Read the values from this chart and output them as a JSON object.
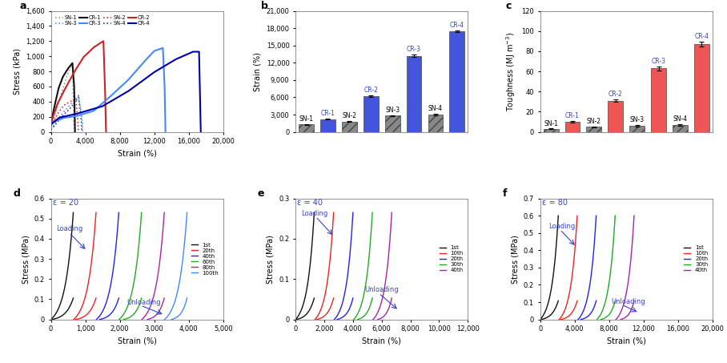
{
  "panel_a": {
    "title": "a",
    "xlabel": "Strain (%)",
    "ylabel": "Stress (kPa)",
    "xlim": [
      0,
      20000
    ],
    "ylim": [
      0,
      1600
    ],
    "xticks": [
      0,
      4000,
      8000,
      12000,
      16000,
      20000
    ],
    "xticklabels": [
      "0",
      "4,000",
      "8,000",
      "12,000",
      "16,000",
      "20,000"
    ],
    "yticks": [
      0,
      200,
      400,
      600,
      800,
      1000,
      1200,
      1400,
      1600
    ],
    "yticklabels": [
      "0",
      "200",
      "400",
      "600",
      "800",
      "1,000",
      "1,200",
      "1,400",
      "1,600"
    ]
  },
  "panel_b": {
    "title": "b",
    "ylabel": "Strain (%)",
    "ylim": [
      0,
      21000
    ],
    "yticks": [
      0,
      3000,
      6000,
      9000,
      12000,
      15000,
      18000,
      21000
    ],
    "yticklabels": [
      "0",
      "3,000",
      "6,000",
      "9,000",
      "12,000",
      "15,000",
      "18,000",
      "21,000"
    ],
    "groups": [
      "SN-1",
      "CR-1",
      "SN-2",
      "CR-2",
      "SN-3",
      "CR-3",
      "SN-4",
      "CR-4"
    ],
    "values": [
      1300,
      2200,
      1800,
      6200,
      2800,
      13200,
      3000,
      17500
    ],
    "errors": [
      50,
      80,
      60,
      120,
      80,
      200,
      90,
      150
    ],
    "colors": [
      "#888888",
      "#4455dd",
      "#888888",
      "#4455dd",
      "#888888",
      "#4455dd",
      "#888888",
      "#4455dd"
    ],
    "hatched": [
      true,
      false,
      true,
      false,
      true,
      false,
      true,
      false
    ]
  },
  "panel_c": {
    "title": "c",
    "ylabel": "Toughness (MJ m⁻³)",
    "ylim": [
      0,
      120
    ],
    "yticks": [
      0,
      20,
      40,
      60,
      80,
      100,
      120
    ],
    "yticklabels": [
      "0",
      "20",
      "40",
      "60",
      "80",
      "100",
      "120"
    ],
    "groups": [
      "SN-1",
      "CR-1",
      "SN-2",
      "CR-2",
      "SN-3",
      "CR-3",
      "SN-4",
      "CR-4"
    ],
    "values": [
      3,
      10,
      5,
      31,
      6,
      63,
      7,
      87
    ],
    "errors": [
      0.3,
      0.8,
      0.5,
      1.2,
      0.6,
      2.0,
      0.7,
      2.5
    ],
    "colors": [
      "#888888",
      "#ee5555",
      "#888888",
      "#ee5555",
      "#888888",
      "#ee5555",
      "#888888",
      "#ee5555"
    ],
    "hatched": [
      true,
      false,
      true,
      false,
      true,
      false,
      true,
      false
    ]
  },
  "panel_d": {
    "title": "d",
    "annotation": "ε = 20",
    "xlabel": "Strain (%)",
    "ylabel": "Stress (MPa)",
    "xlim": [
      0,
      5000
    ],
    "ylim": [
      0,
      0.6
    ],
    "xticks": [
      0,
      1000,
      2000,
      3000,
      4000,
      5000
    ],
    "xticklabels": [
      "0",
      "1,000",
      "2,000",
      "3,000",
      "4,000",
      "5,000"
    ],
    "yticks": [
      0.0,
      0.1,
      0.2,
      0.3,
      0.4,
      0.5,
      0.6
    ],
    "yticklabels": [
      "0",
      "0.1",
      "0.2",
      "0.3",
      "0.4",
      "0.5",
      "0.6"
    ],
    "cycles": [
      "1st",
      "20th",
      "40th",
      "60th",
      "80th",
      "100th"
    ],
    "colors": [
      "#111111",
      "#ee2222",
      "#2222ee",
      "#22aa22",
      "#aa22aa",
      "#4488ff"
    ]
  },
  "panel_e": {
    "title": "e",
    "annotation": "ε = 40",
    "xlabel": "Strain (%)",
    "ylabel": "Stress (MPa)",
    "xlim": [
      0,
      12000
    ],
    "ylim": [
      0,
      0.3
    ],
    "xticks": [
      0,
      2000,
      4000,
      6000,
      8000,
      10000,
      12000
    ],
    "xticklabels": [
      "0",
      "2,000",
      "4,000",
      "6,000",
      "8,000",
      "10,000",
      "12,000"
    ],
    "yticks": [
      0.0,
      0.1,
      0.2,
      0.3
    ],
    "yticklabels": [
      "0",
      "0.1",
      "0.2",
      "0.3"
    ],
    "cycles": [
      "1st",
      "10th",
      "20th",
      "30th",
      "40th"
    ],
    "colors": [
      "#111111",
      "#ee2222",
      "#2222ee",
      "#22aa22",
      "#aa22aa"
    ]
  },
  "panel_f": {
    "title": "f",
    "annotation": "ε = 80",
    "xlabel": "Strain (%)",
    "ylabel": "Stress (MPa)",
    "xlim": [
      0,
      20000
    ],
    "ylim": [
      0,
      0.7
    ],
    "xticks": [
      0,
      4000,
      8000,
      12000,
      16000,
      20000
    ],
    "xticklabels": [
      "0",
      "4,000",
      "8,000",
      "12,000",
      "16,000",
      "20,000"
    ],
    "yticks": [
      0.0,
      0.1,
      0.2,
      0.3,
      0.4,
      0.5,
      0.6,
      0.7
    ],
    "yticklabels": [
      "0",
      "0.1",
      "0.2",
      "0.3",
      "0.4",
      "0.5",
      "0.6",
      "0.7"
    ],
    "cycles": [
      "1st",
      "10th",
      "20th",
      "30th",
      "40th"
    ],
    "colors": [
      "#111111",
      "#ee2222",
      "#2222ee",
      "#22aa22",
      "#aa22aa"
    ]
  }
}
